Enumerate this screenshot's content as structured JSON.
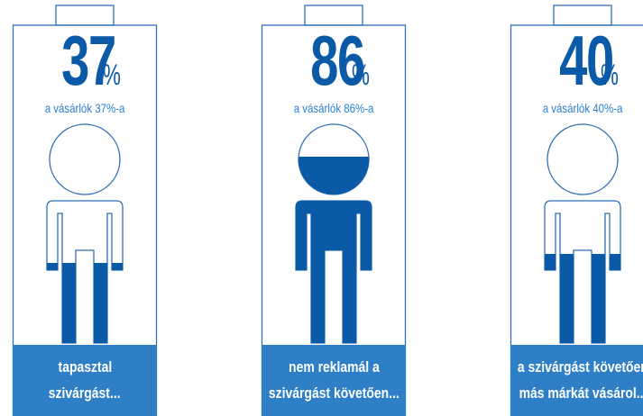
{
  "panels": [
    {
      "value": "37",
      "percent_sign": "%",
      "subtitle": "a vásárlók 37%-a",
      "caption_line1": "tapasztal",
      "caption_line2": "szivárgást...",
      "fill_fraction": 0.37
    },
    {
      "value": "86",
      "percent_sign": "%",
      "subtitle": "a vásárlók 86%-a",
      "caption_line1": "nem reklamál a",
      "caption_line2": "szivárgást követően...",
      "fill_fraction": 0.86
    },
    {
      "value": "40",
      "percent_sign": "%",
      "subtitle": "a vásárlók 40%-a",
      "caption_line1": "a szivárgást követően",
      "caption_line2": "más márkát vásárol...",
      "fill_fraction": 0.4
    }
  ],
  "colors": {
    "accent": "#0a5aa8",
    "subtitle": "#2a7fd0",
    "caption_bg": "#2f7fc6",
    "outline": "#2f6fb6"
  }
}
